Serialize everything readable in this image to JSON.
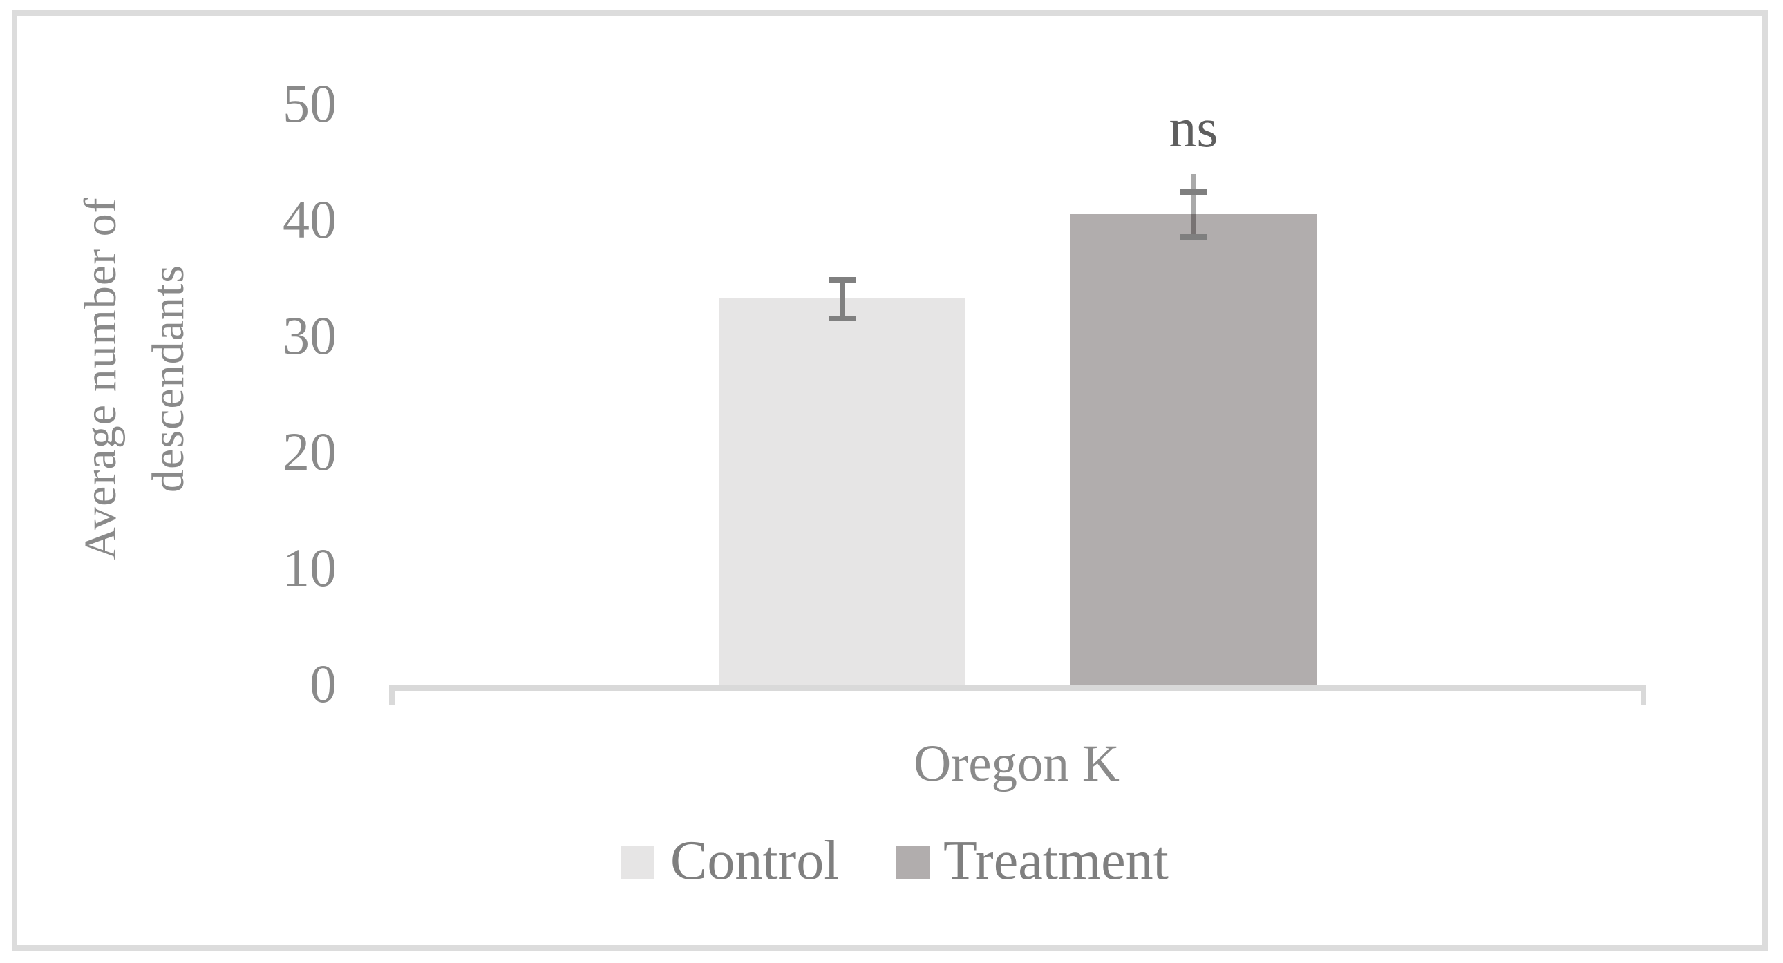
{
  "chart_data": {
    "type": "bar",
    "title": "",
    "categories": [
      "Oregon K"
    ],
    "series": [
      {
        "name": "Control",
        "values": [
          33.3
        ],
        "error_high": [
          34.8
        ],
        "error_low": [
          31.5
        ],
        "color": "#e6e5e5",
        "error_color": "#808080"
      },
      {
        "name": "Treatment",
        "values": [
          40.5
        ],
        "error_high": [
          42.4
        ],
        "error_low": [
          38.5
        ],
        "error_line_top": [
          43.9
        ],
        "color": "#b1adad",
        "error_color": "#7f7f7f",
        "error_line_color_above": "#a9a9a9",
        "error_line_color_inside": "#787373"
      }
    ],
    "annotations": [
      {
        "text": "ns",
        "series": "Treatment",
        "category": "Oregon K",
        "color": "#5e5e5e"
      }
    ],
    "xlabel": "",
    "ylabel": "Average number of\ndescendants",
    "ylim": [
      0,
      50
    ],
    "yticks": [
      0,
      10,
      20,
      30,
      40,
      50
    ],
    "grid": false,
    "legend_position": "bottom"
  },
  "colors": {
    "axis_line": "#d9d9d9",
    "tick_label": "#8a8a8a",
    "axis_title": "#8a8a8a",
    "category_label": "#8a8a8a",
    "legend_label": "#7f7f7f",
    "frame_border": "#dcdcdc",
    "background": "#ffffff"
  }
}
